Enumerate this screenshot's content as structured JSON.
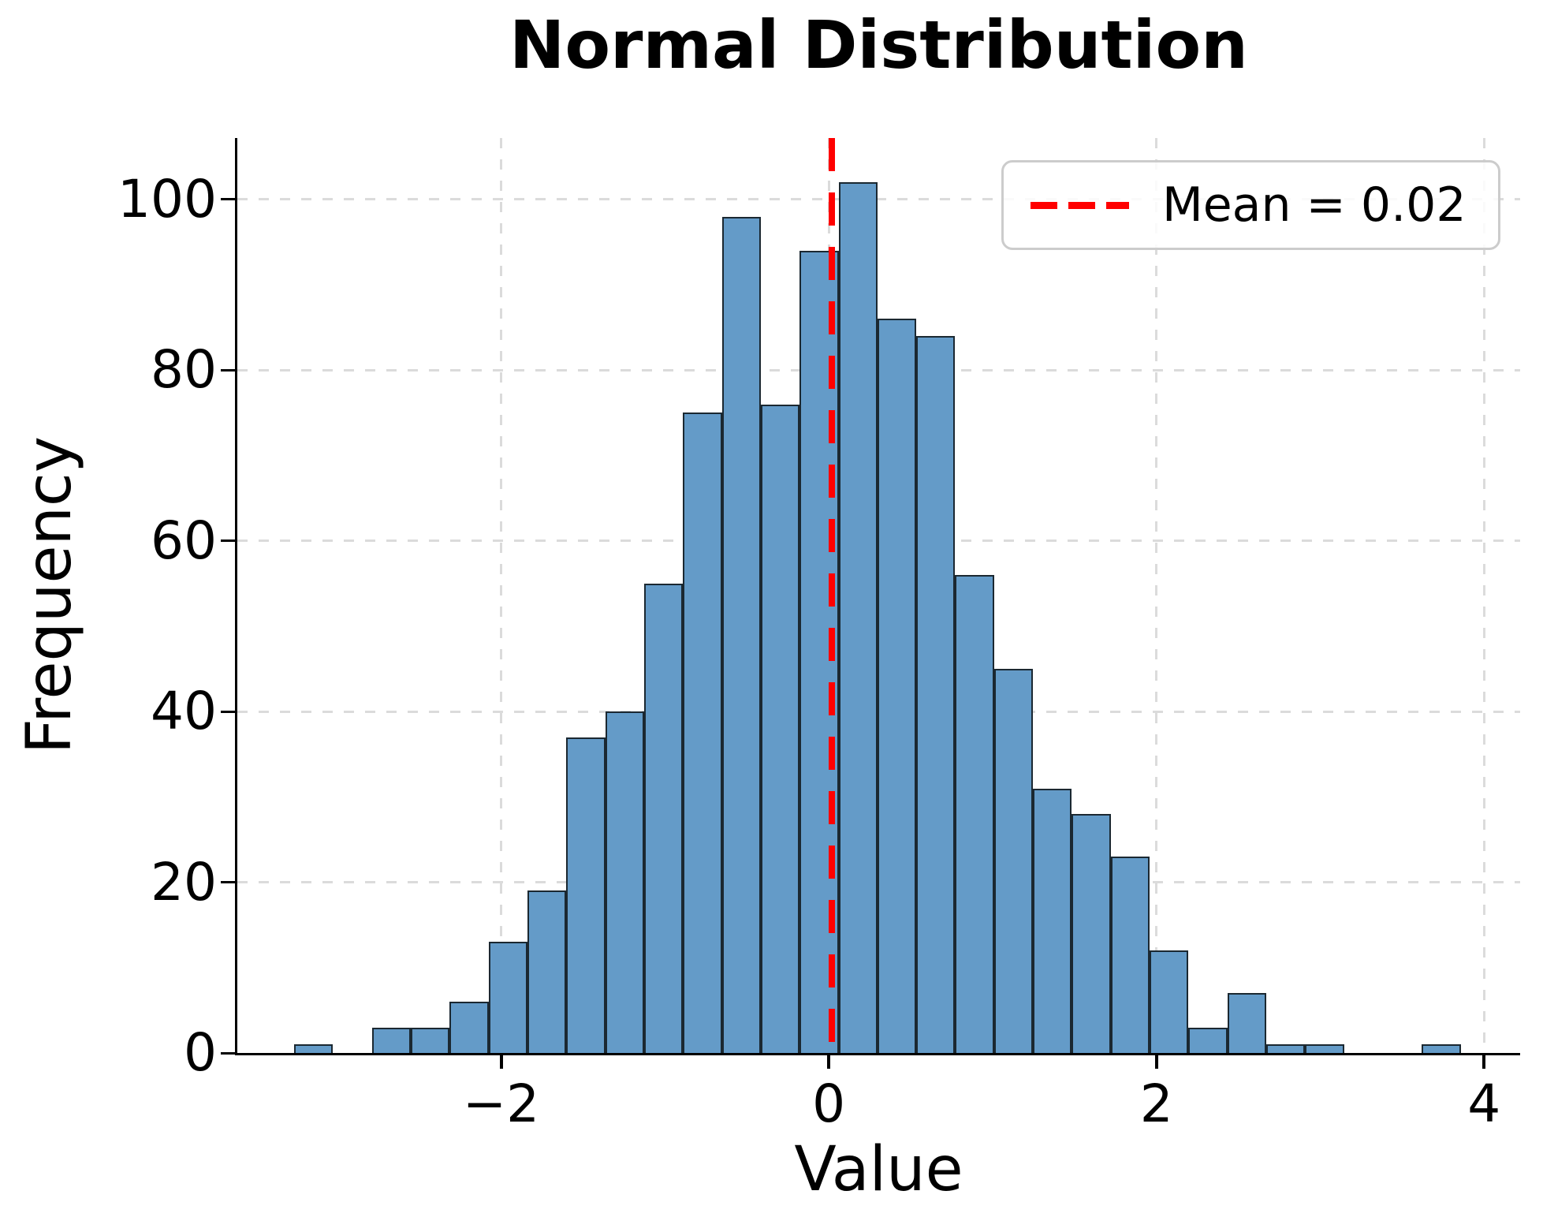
{
  "chart_data": {
    "type": "histogram",
    "title": "Normal Distribution",
    "xlabel": "Value",
    "ylabel": "Frequency",
    "bin_start": -3.264,
    "bin_width": 0.2374,
    "counts": [
      1,
      0,
      3,
      3,
      6,
      13,
      19,
      37,
      40,
      55,
      75,
      98,
      76,
      94,
      102,
      86,
      84,
      56,
      45,
      31,
      28,
      23,
      12,
      3,
      7,
      1,
      1,
      0,
      0,
      1
    ],
    "mean": 0.02,
    "legend_label": "Mean = 0.02",
    "legend_position": "upper right",
    "grid": true,
    "xlim": [
      -3.61,
      4.22
    ],
    "ylim": [
      0,
      107.2
    ],
    "x_ticks": [
      -2,
      0,
      2,
      4
    ],
    "x_tick_labels": [
      "−2",
      "0",
      "2",
      "4"
    ],
    "y_ticks": [
      0,
      20,
      40,
      60,
      80,
      100
    ],
    "y_tick_labels": [
      "0",
      "20",
      "40",
      "60",
      "80",
      "100"
    ],
    "colors": {
      "bar_fill": "#649BC8",
      "bar_edge": "#1B2831",
      "mean_line": "#FF0000",
      "grid": "#DBDBDB",
      "axis": "#000000",
      "text": "#000000",
      "legend_border": "#CCCCCC",
      "background": "#FFFFFF"
    }
  }
}
